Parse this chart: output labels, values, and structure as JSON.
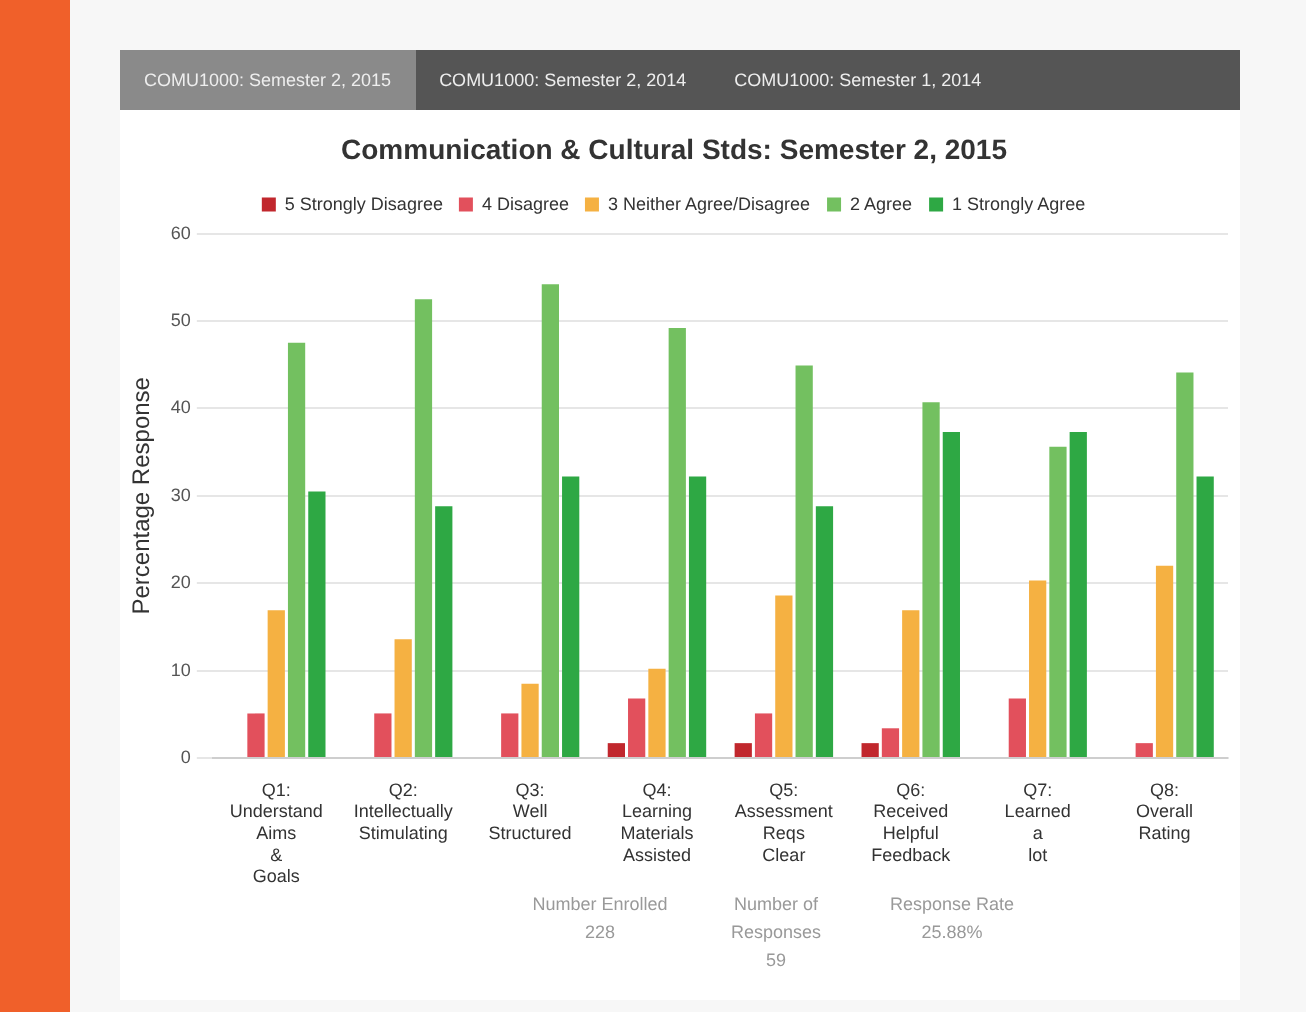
{
  "chart_data": {
    "type": "bar",
    "title": "Communication & Cultural Stds: Semester 2, 2015",
    "ylabel": "Percentage Response",
    "categories": [
      "Q1: Understand Aims & Goals",
      "Q2: Intellectually Stimulating",
      "Q3: Well Structured",
      "Q4: Learning Materials Assisted",
      "Q5: Assessment Reqs Clear",
      "Q6: Received Helpful Feedback",
      "Q7: Learned a lot",
      "Q8: Overall Rating"
    ],
    "series": [
      {
        "name": "5 Strongly Disagree",
        "color": "#c1272d",
        "values": [
          0,
          0,
          0,
          1.7,
          1.7,
          1.7,
          0,
          0
        ]
      },
      {
        "name": "4 Disagree",
        "color": "#e2505c",
        "values": [
          5.1,
          5.1,
          5.1,
          6.8,
          5.1,
          3.4,
          6.8,
          1.7
        ]
      },
      {
        "name": "3 Neither Agree/Disagree",
        "color": "#f5b142",
        "values": [
          16.9,
          13.6,
          8.5,
          10.2,
          18.6,
          16.9,
          20.3,
          22.0
        ]
      },
      {
        "name": "2 Agree",
        "color": "#73c060",
        "values": [
          47.5,
          52.5,
          54.2,
          49.2,
          44.9,
          40.7,
          35.6,
          44.1
        ]
      },
      {
        "name": "1 Strongly Agree",
        "color": "#2ea844",
        "values": [
          30.5,
          28.8,
          32.2,
          32.2,
          28.8,
          37.3,
          37.3,
          32.2
        ]
      }
    ],
    "ylim": [
      0,
      60
    ],
    "yticks": [
      0,
      10,
      20,
      30,
      40,
      50,
      60
    ],
    "grid": "y",
    "legend": "top",
    "annotations": [
      "COMU1000: Semester 2, 2015",
      "COMU1000: Semester 2, 2014",
      "COMU1000: Semester 1, 2014",
      "Number Enrolled",
      "228",
      "Number of Responses",
      "59",
      "Response Rate",
      "25.88%"
    ]
  }
}
